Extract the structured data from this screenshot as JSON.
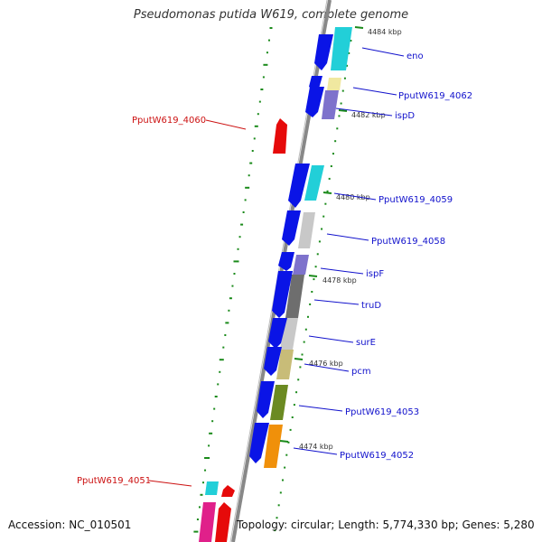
{
  "title": "Pseudomonas putida W619, complete genome",
  "footer": {
    "accession": "Accession: NC_010501",
    "topology": "Topology: circular; Length: 5,774,330 bp; Genes: 5,280"
  },
  "colors": {
    "forward_gene": "#0a14e6",
    "reverse_gene": "#e60a0a",
    "plus_label": "#1111cc",
    "minus_label": "#cc1111",
    "backbone": "#8c8c8c",
    "dots": "#1a8a1a"
  },
  "ticks": [
    "4484 kbp",
    "4482 kbp",
    "4480 kbp",
    "4478 kbp",
    "4476 kbp",
    "4474 kbp"
  ],
  "gene_labels": [
    {
      "text": "eno",
      "strand": "plus"
    },
    {
      "text": "PputW619_4062",
      "strand": "plus"
    },
    {
      "text": "ispD",
      "strand": "plus"
    },
    {
      "text": "PputW619_4060",
      "strand": "minus"
    },
    {
      "text": "PputW619_4059",
      "strand": "plus"
    },
    {
      "text": "PputW619_4058",
      "strand": "plus"
    },
    {
      "text": "ispF",
      "strand": "plus"
    },
    {
      "text": "truD",
      "strand": "plus"
    },
    {
      "text": "surE",
      "strand": "plus"
    },
    {
      "text": "pcm",
      "strand": "plus"
    },
    {
      "text": "PputW619_4053",
      "strand": "plus"
    },
    {
      "text": "PputW619_4052",
      "strand": "plus"
    },
    {
      "text": "PputW619_4051",
      "strand": "minus"
    }
  ]
}
